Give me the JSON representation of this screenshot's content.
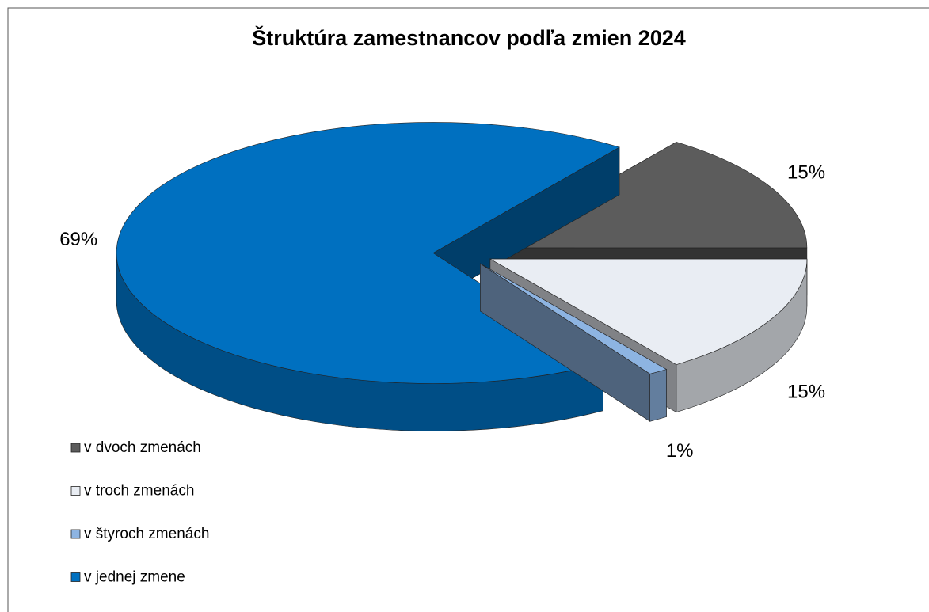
{
  "chart_data": {
    "type": "pie3d",
    "title": "Štruktúra zamestnancov podľa zmien 2024",
    "categories": [
      "v dvoch zmenách",
      "v troch zmenách",
      "v štyroch zmenách",
      "v jednej zmene"
    ],
    "values": [
      15,
      15,
      1,
      69
    ],
    "value_labels": [
      "15%",
      "15%",
      "1%",
      "69%"
    ],
    "colors": [
      "#5c5c5c",
      "#e9edf3",
      "#8db4e2",
      "#0070c0"
    ],
    "legend": "bottom-left"
  }
}
